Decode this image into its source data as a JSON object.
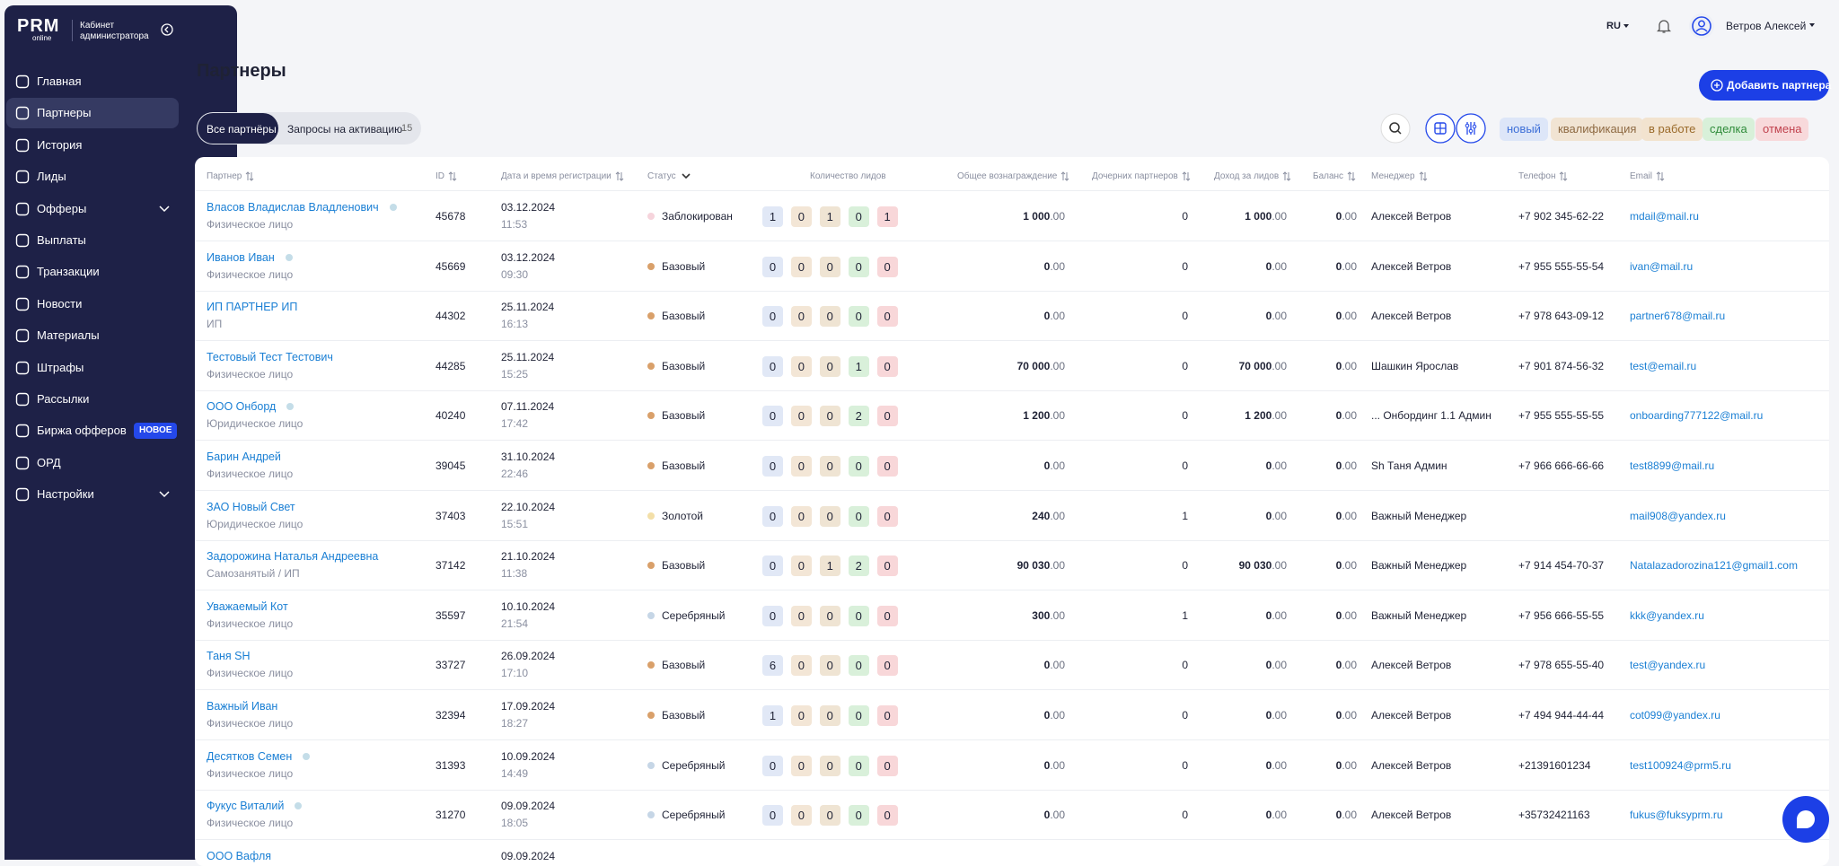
{
  "sidebar": {
    "logo": "PRM",
    "logo_sub": "online",
    "cabinet": "Кабинет администратора",
    "menu": [
      {
        "label": "Главная"
      },
      {
        "label": "Партнеры",
        "active": true
      },
      {
        "label": "История"
      },
      {
        "label": "Лиды"
      },
      {
        "label": "Офферы",
        "expandable": true
      },
      {
        "label": "Выплаты"
      },
      {
        "label": "Транзакции"
      },
      {
        "label": "Новости"
      },
      {
        "label": "Материалы"
      },
      {
        "label": "Штрафы"
      },
      {
        "label": "Рассылки"
      },
      {
        "label": "Биржа офферов",
        "badge": "НОВОЕ"
      },
      {
        "label": "ОРД"
      },
      {
        "label": "Настройки",
        "expandable": true
      }
    ]
  },
  "header": {
    "lang": "RU",
    "user": "Ветров Алексей"
  },
  "page": {
    "title": "Партнеры",
    "add_button": "Добавить партнера",
    "tabs": [
      {
        "label": "Все партнёры",
        "active": true
      },
      {
        "label": "Запросы на активацию",
        "count": 15
      }
    ],
    "filters": [
      "новый",
      "квалификация",
      "в работе",
      "сделка",
      "отмена"
    ]
  },
  "table": {
    "columns": [
      {
        "label": "Партнер",
        "sort": true
      },
      {
        "label": "ID",
        "sort": true
      },
      {
        "label": "Дата и время регистрации",
        "sort": true
      },
      {
        "label": "Статус",
        "filter": true
      },
      {
        "label": "Количество лидов"
      },
      {
        "label": "Общее вознаграждение",
        "sort": true
      },
      {
        "label": "Дочерних партнеров",
        "sort": true
      },
      {
        "label": "Доход за лидов",
        "sort": true
      },
      {
        "label": "Баланс",
        "sort": true
      },
      {
        "label": "Менеджер",
        "sort": true
      },
      {
        "label": "Телефон",
        "sort": true
      },
      {
        "label": "Email",
        "sort": true
      }
    ],
    "rows": [
      {
        "name": "Власов Владислав Владленович",
        "online": true,
        "kind": "Физическое лицо",
        "id": 45678,
        "date": "03.12.2024",
        "time": "11:53",
        "status": "Заблокирован",
        "status_color": "#f6d4dc",
        "leads": [
          1,
          0,
          1,
          0,
          1
        ],
        "reward": "1 000.00",
        "children": 0,
        "income": "1 000.00",
        "balance": "0.00",
        "manager": "Алексей Ветров",
        "phone": "+7 902 345-62-22",
        "email": "mdail@mail.ru"
      },
      {
        "name": "Иванов Иван",
        "online": true,
        "kind": "Физическое лицо",
        "id": 45669,
        "date": "03.12.2024",
        "time": "09:30",
        "status": "Базовый",
        "status_color": "#d9a06a",
        "leads": [
          0,
          0,
          0,
          0,
          0
        ],
        "reward": "0.00",
        "children": 0,
        "income": "0.00",
        "balance": "0.00",
        "manager": "Алексей Ветров",
        "phone": "+7 955 555-55-54",
        "email": "ivan@mail.ru"
      },
      {
        "name": "ИП ПАРТНЕР ИП",
        "kind": "ИП",
        "id": 44302,
        "date": "25.11.2024",
        "time": "16:13",
        "status": "Базовый",
        "status_color": "#d9a06a",
        "leads": [
          0,
          0,
          0,
          0,
          0
        ],
        "reward": "0.00",
        "children": 0,
        "income": "0.00",
        "balance": "0.00",
        "manager": "Алексей Ветров",
        "phone": "+7 978 643-09-12",
        "email": "partner678@mail.ru"
      },
      {
        "name": "Тестовый Тест Тестович",
        "kind": "Физическое лицо",
        "id": 44285,
        "date": "25.11.2024",
        "time": "15:25",
        "status": "Базовый",
        "status_color": "#d9a06a",
        "leads": [
          0,
          0,
          0,
          1,
          0
        ],
        "reward": "70 000.00",
        "children": 0,
        "income": "70 000.00",
        "balance": "0.00",
        "manager": "Шашкин Ярослав",
        "phone": "+7 901 874-56-32",
        "email": "test@email.ru"
      },
      {
        "name": "ООО Онборд",
        "online": true,
        "kind": "Юридическое лицо",
        "id": 40240,
        "date": "07.11.2024",
        "time": "17:42",
        "status": "Базовый",
        "status_color": "#d9a06a",
        "leads": [
          0,
          0,
          0,
          2,
          0
        ],
        "reward": "1 200.00",
        "children": 0,
        "income": "1 200.00",
        "balance": "0.00",
        "manager": "... Онбординг 1.1 Админ",
        "phone": "+7 955 555-55-55",
        "email": "onboarding777122@mail.ru"
      },
      {
        "name": "Барин Андрей",
        "kind": "Физическое лицо",
        "id": 39045,
        "date": "31.10.2024",
        "time": "22:46",
        "status": "Базовый",
        "status_color": "#d9a06a",
        "leads": [
          0,
          0,
          0,
          0,
          0
        ],
        "reward": "0.00",
        "children": 0,
        "income": "0.00",
        "balance": "0.00",
        "manager": "Sh Таня Админ",
        "phone": "+7 966 666-66-66",
        "email": "test8899@mail.ru"
      },
      {
        "name": "ЗАО Новый Свет",
        "kind": "Юридическое лицо",
        "id": 37403,
        "date": "22.10.2024",
        "time": "15:51",
        "status": "Золотой",
        "status_color": "#f3dfa8",
        "leads": [
          0,
          0,
          0,
          0,
          0
        ],
        "reward": "240.00",
        "children": 1,
        "income": "0.00",
        "balance": "0.00",
        "manager": "Важный Менеджер",
        "phone": null,
        "email": "mail908@yandex.ru"
      },
      {
        "name": "Задорожина Наталья Андреевна",
        "kind": "Самозанятый / ИП",
        "id": 37142,
        "date": "21.10.2024",
        "time": "11:38",
        "status": "Базовый",
        "status_color": "#d9a06a",
        "leads": [
          0,
          0,
          1,
          2,
          0
        ],
        "reward": "90 030.00",
        "children": 0,
        "income": "90 030.00",
        "balance": "0.00",
        "manager": "Важный Менеджер",
        "phone": "+7 914 454-70-37",
        "email": "Natalazadorozina121@gmail1.com"
      },
      {
        "name": "Уважаемый Кот",
        "kind": "Физическое лицо",
        "id": 35597,
        "date": "10.10.2024",
        "time": "21:54",
        "status": "Серебряный",
        "status_color": "#c6d6e6",
        "leads": [
          0,
          0,
          0,
          0,
          0
        ],
        "reward": "300.00",
        "children": 1,
        "income": "0.00",
        "balance": "0.00",
        "manager": "Важный Менеджер",
        "phone": "+7 956 666-55-55",
        "email": "kkk@yandex.ru"
      },
      {
        "name": "Таня SH",
        "kind": "Физическое лицо",
        "id": 33727,
        "date": "26.09.2024",
        "time": "17:10",
        "status": "Базовый",
        "status_color": "#d9a06a",
        "leads": [
          6,
          0,
          0,
          0,
          0
        ],
        "reward": "0.00",
        "children": 0,
        "income": "0.00",
        "balance": "0.00",
        "manager": "Алексей Ветров",
        "phone": "+7 978 655-55-40",
        "email": "test@yandex.ru"
      },
      {
        "name": "Важный Иван",
        "kind": "Физическое лицо",
        "id": 32394,
        "date": "17.09.2024",
        "time": "18:27",
        "status": "Базовый",
        "status_color": "#d9a06a",
        "leads": [
          1,
          0,
          0,
          0,
          0
        ],
        "reward": "0.00",
        "children": 0,
        "income": "0.00",
        "balance": "0.00",
        "manager": "Алексей Ветров",
        "phone": "+7 494 944-44-44",
        "email": "cot099@yandex.ru"
      },
      {
        "name": "Десятков Семен",
        "online": true,
        "kind": "Физическое лицо",
        "id": 31393,
        "date": "10.09.2024",
        "time": "14:49",
        "status": "Серебряный",
        "status_color": "#c6d6e6",
        "leads": [
          0,
          0,
          0,
          0,
          0
        ],
        "reward": "0.00",
        "children": 0,
        "income": "0.00",
        "balance": "0.00",
        "manager": "Алексей Ветров",
        "phone": "+21391601234",
        "email": "test100924@prm5.ru"
      },
      {
        "name": "Фукус Виталий",
        "online": true,
        "kind": "Физическое лицо",
        "id": 31270,
        "date": "09.09.2024",
        "time": "18:05",
        "status": "Серебряный",
        "status_color": "#c6d6e6",
        "leads": [
          0,
          0,
          0,
          0,
          0
        ],
        "reward": "0.00",
        "children": 0,
        "income": "0.00",
        "balance": "0.00",
        "manager": "Алексей Ветров",
        "phone": "+35732421163",
        "email": "fukus@fuksyprm.ru"
      }
    ],
    "partial_row": {
      "name": "ООО Вафля",
      "date": "09.09.2024"
    }
  }
}
